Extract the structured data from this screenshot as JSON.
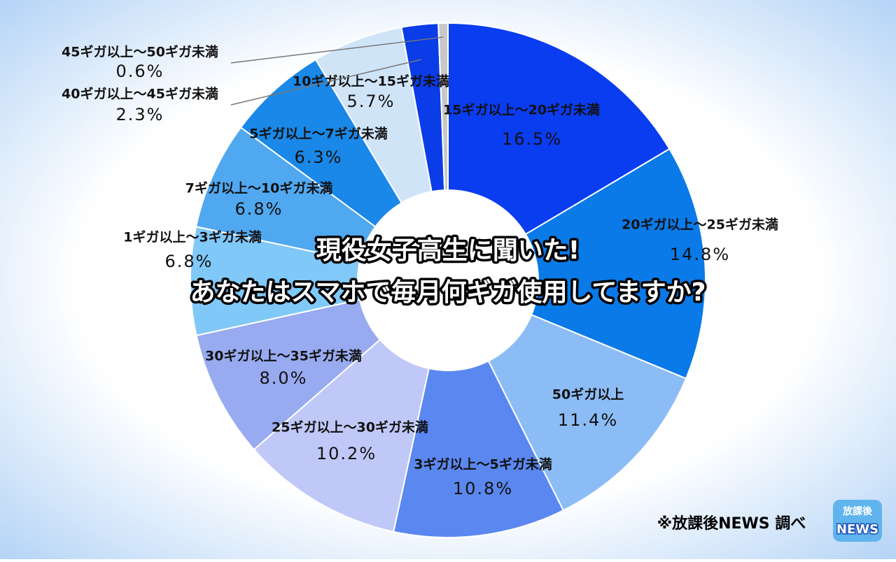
{
  "chart_data": {
    "type": "donut",
    "title": [
      "現役女子高生に聞いた!",
      "あなたはスマホで毎月何ギガ使用してますか?"
    ],
    "categories": [
      "15ギガ以上〜20ギガ未満",
      "20ギガ以上〜25ギガ未満",
      "50ギガ以上",
      "3ギガ以上〜5ギガ未満",
      "25ギガ以上〜30ギガ未満",
      "30ギガ以上〜35ギガ未満",
      "1ギガ以上〜3ギガ未満",
      "7ギガ以上〜10ギガ未満",
      "5ギガ以上〜7ギガ未満",
      "10ギガ以上〜15ギガ未満",
      "40ギガ以上〜45ギガ未満",
      "45ギガ以上〜50ギガ未満"
    ],
    "values": [
      16.5,
      14.8,
      11.4,
      10.8,
      10.2,
      8.0,
      6.8,
      6.8,
      6.3,
      5.7,
      2.3,
      0.6
    ],
    "value_labels": [
      "16.5%",
      "14.8%",
      "11.4%",
      "10.8%",
      "10.2%",
      "8.0%",
      "6.8%",
      "6.8%",
      "6.3%",
      "5.7%",
      "2.3%",
      "0.6%"
    ],
    "colors": [
      "#0a3cf0",
      "#0a7ae8",
      "#8cbcf5",
      "#5a88f0",
      "#c0c8f8",
      "#98aaf0",
      "#80c8f8",
      "#50a8f0",
      "#1a88e8",
      "#d0e4f8",
      "#0a3ce8",
      "#c8c8c8"
    ],
    "source": "※放課後NEWS 調べ",
    "logo": [
      "放課後",
      "NEWS"
    ]
  }
}
